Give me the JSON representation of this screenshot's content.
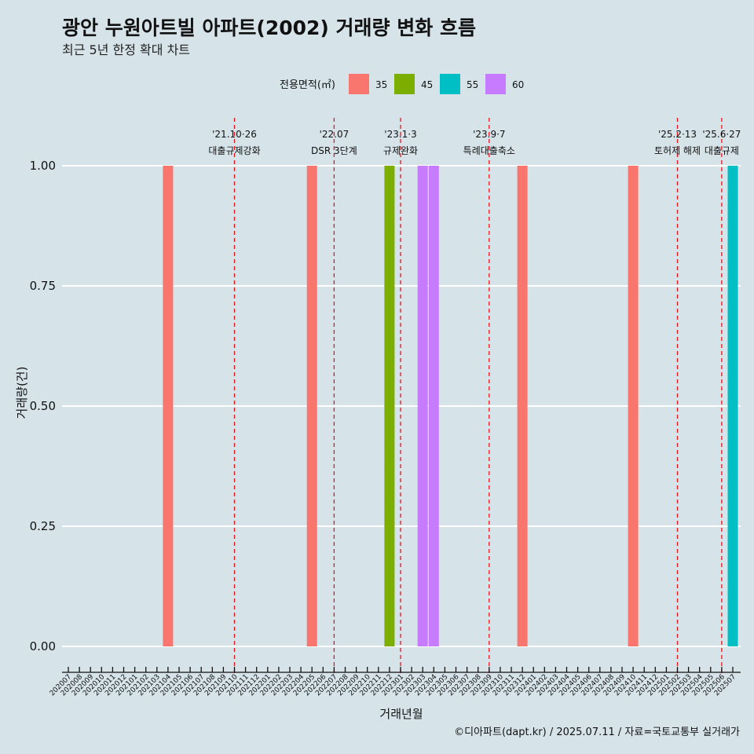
{
  "chart_data": {
    "type": "bar",
    "title": "광안 누원아트빌 아파트(2002) 거래량 변화 흐름",
    "subtitle": "최근 5년 한정 확대 차트",
    "xlabel": "거래년월",
    "ylabel": "거래량(건)",
    "ylim": [
      0,
      1
    ],
    "y_ticks": [
      "0.00",
      "0.25",
      "0.50",
      "0.75",
      "1.00"
    ],
    "grid": true,
    "legend": {
      "title": "전용면적(㎡)",
      "position": "top",
      "entries": [
        {
          "label": "35",
          "color": "#f8766d"
        },
        {
          "label": "45",
          "color": "#7cae00"
        },
        {
          "label": "55",
          "color": "#00bfc4"
        },
        {
          "label": "60",
          "color": "#c77cff"
        }
      ]
    },
    "categories": [
      "202007",
      "202008",
      "202009",
      "202010",
      "202011",
      "202012",
      "202101",
      "202102",
      "202103",
      "202104",
      "202105",
      "202106",
      "202107",
      "202108",
      "202109",
      "202110",
      "202111",
      "202112",
      "202201",
      "202202",
      "202203",
      "202204",
      "202205",
      "202206",
      "202207",
      "202208",
      "202209",
      "202210",
      "202211",
      "202212",
      "202301",
      "202302",
      "202303",
      "202304",
      "202305",
      "202306",
      "202307",
      "202308",
      "202309",
      "202310",
      "202311",
      "202312",
      "202401",
      "202402",
      "202403",
      "202404",
      "202405",
      "202406",
      "202407",
      "202408",
      "202409",
      "202410",
      "202411",
      "202412",
      "202501",
      "202502",
      "202503",
      "202504",
      "202505",
      "202506",
      "202507"
    ],
    "bars": [
      {
        "x": "202104",
        "value": 1,
        "series": "35"
      },
      {
        "x": "202205",
        "value": 1,
        "series": "35"
      },
      {
        "x": "202212",
        "value": 1,
        "series": "45"
      },
      {
        "x": "202303",
        "value": 1,
        "series": "60"
      },
      {
        "x": "202304",
        "value": 1,
        "series": "60"
      },
      {
        "x": "202312",
        "value": 1,
        "series": "35"
      },
      {
        "x": "202410",
        "value": 1,
        "series": "35"
      },
      {
        "x": "202507",
        "value": 1,
        "series": "55"
      }
    ],
    "annotations": [
      {
        "x": "202110",
        "date": "'21.10·26",
        "text": "대출규제강화"
      },
      {
        "x": "202207",
        "date": "'22.07",
        "text": "DSR 3단계"
      },
      {
        "x": "202301",
        "date": "'23.1·3",
        "text": "규제완화"
      },
      {
        "x": "202309",
        "date": "'23.9·7",
        "text": "특례대출축소"
      },
      {
        "x": "202502",
        "date": "'25.2·13",
        "text": "토허제 해제"
      },
      {
        "x": "202506",
        "date": "'25.6·27",
        "text": "대출규제"
      }
    ],
    "caption": "©디아파트(dapt.kr) / 2025.07.11 / 자료=국토교통부 실거래가"
  }
}
